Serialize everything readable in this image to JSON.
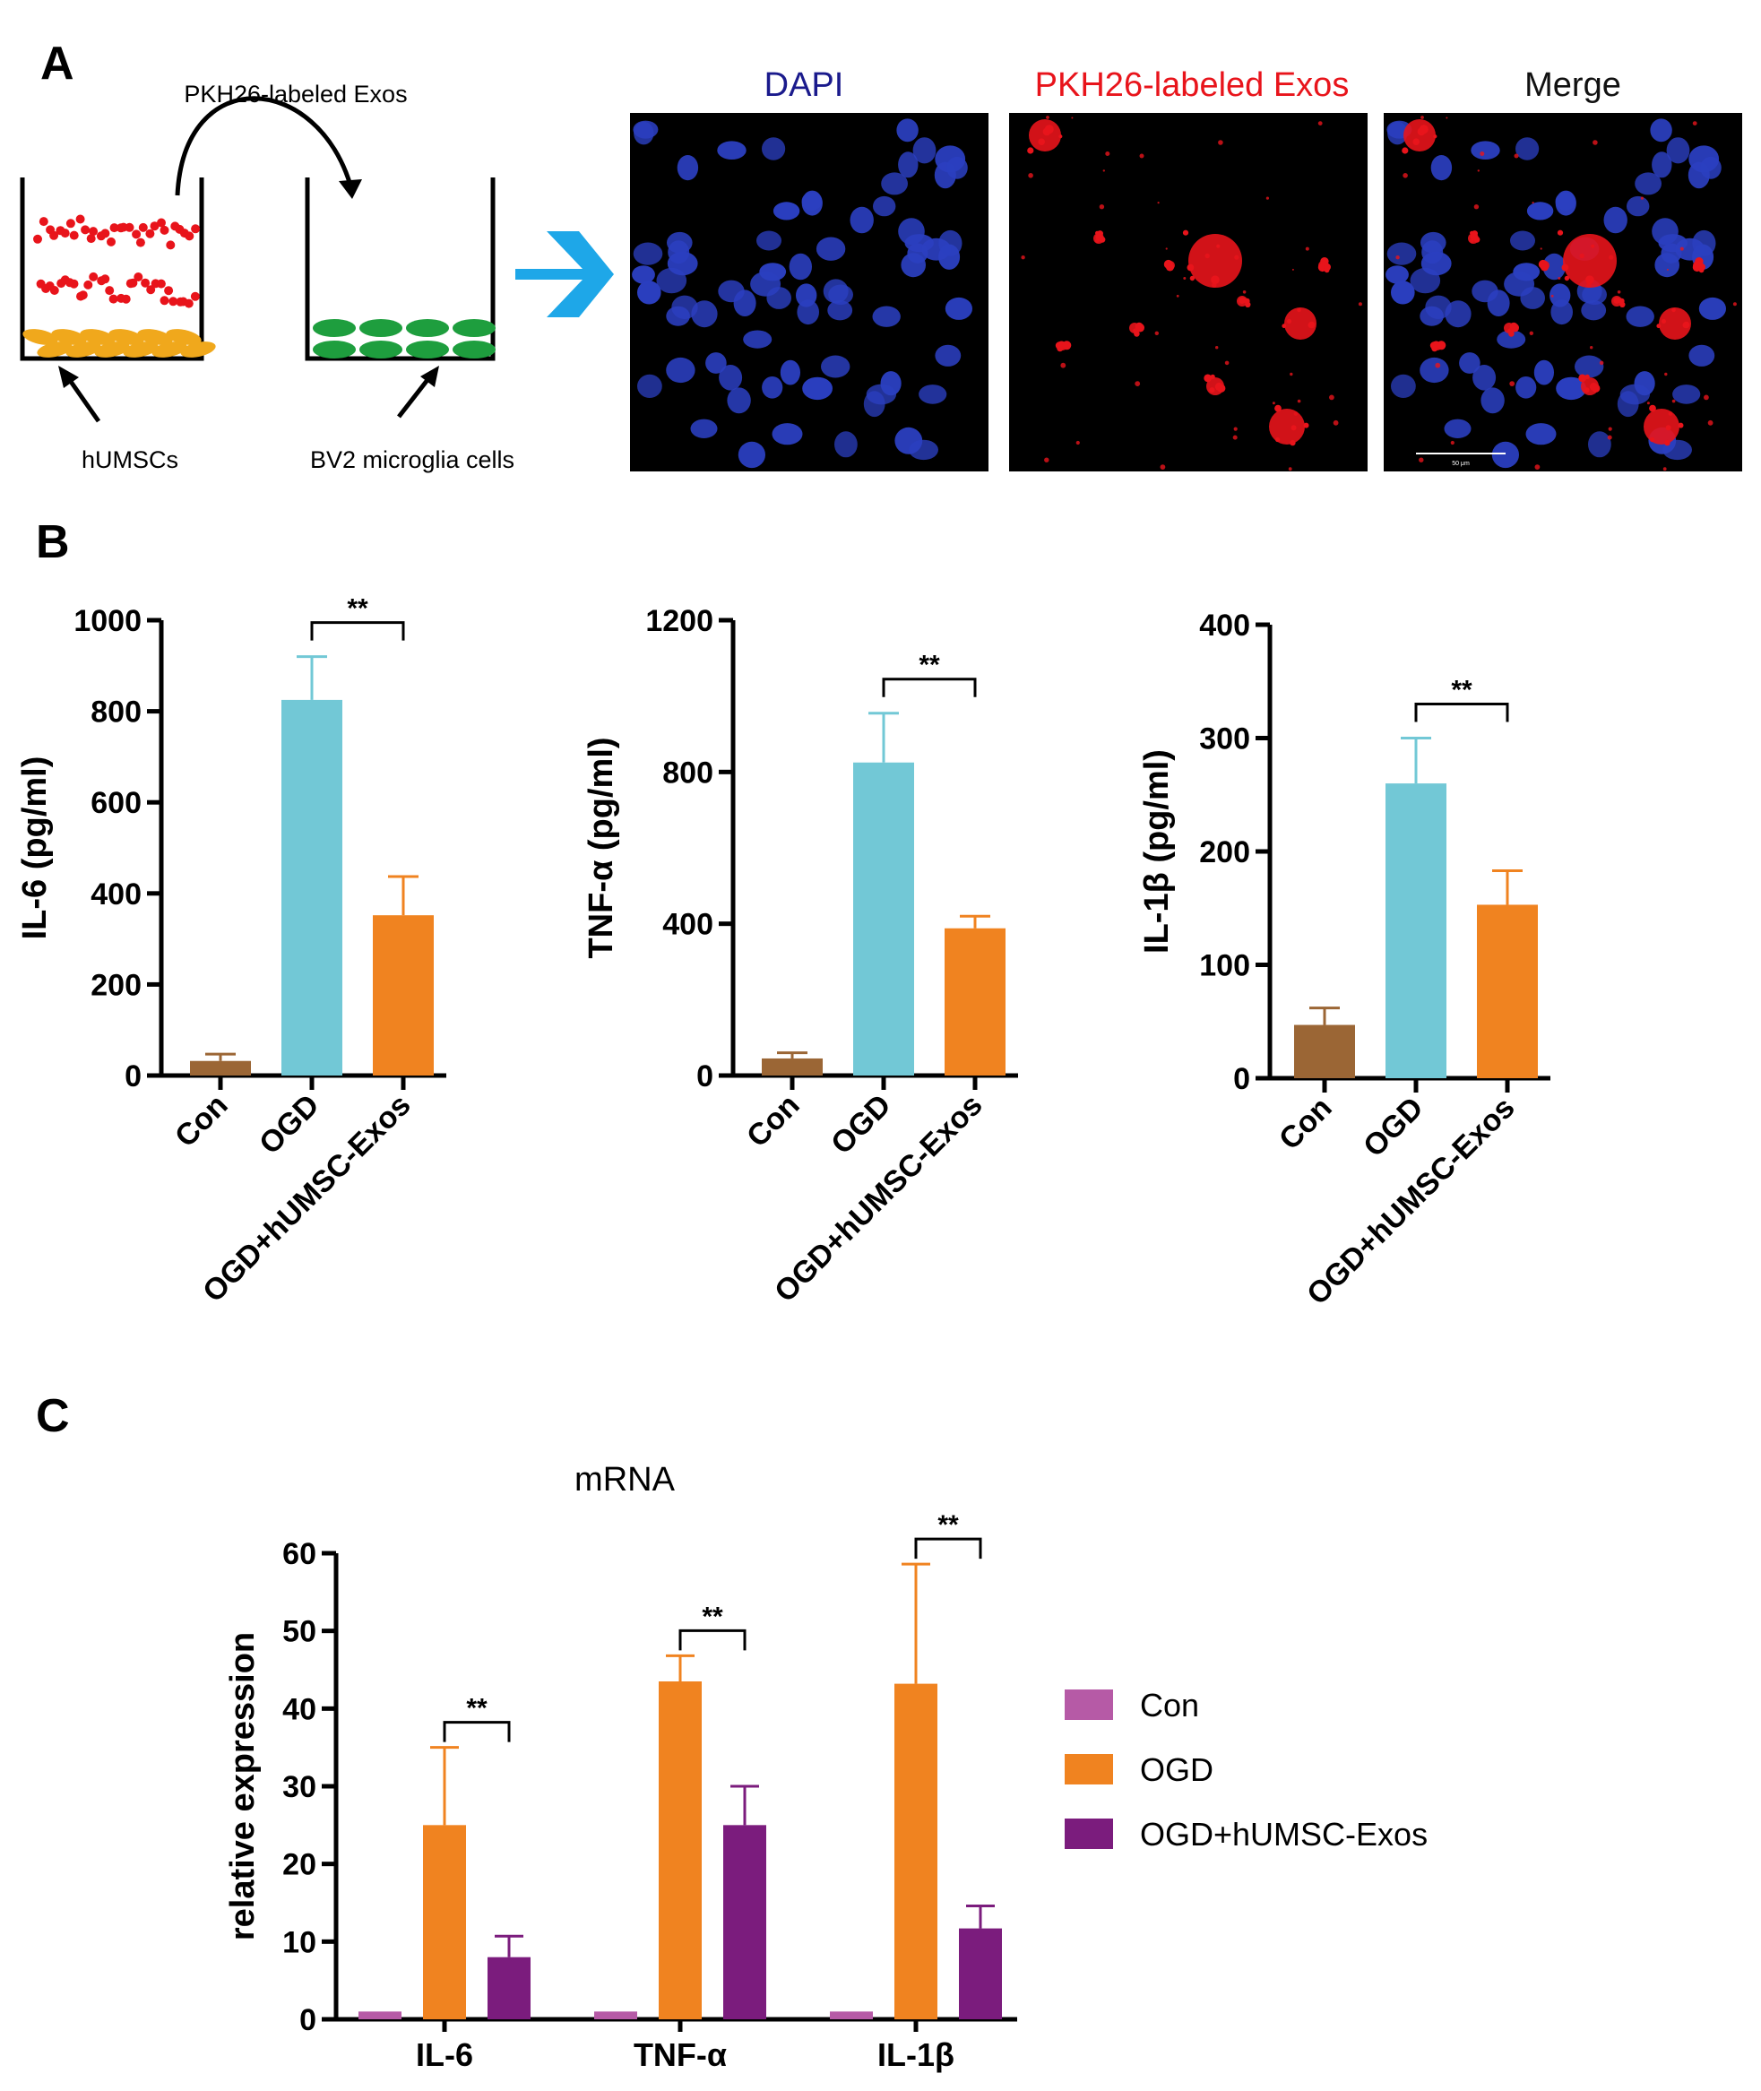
{
  "panel_a": {
    "letter": "A",
    "arrow_label": "PKH26-labeled Exos",
    "label_left": "hUMSCs",
    "label_right": "BV2 microglia cells",
    "micro_titles": [
      {
        "text": "DAPI",
        "color": "#1a1a8c"
      },
      {
        "text": "PKH26-labeled Exos",
        "color": "#e8141b"
      },
      {
        "text": "Merge",
        "color": "#111111"
      }
    ],
    "scale_text": "50 μm",
    "colors": {
      "dot": "#e8141b",
      "huMSC": "#f0a81c",
      "bv2": "#1e9e3e",
      "arrow": "#1ea7e8",
      "nucleus": "#2b3fc0"
    }
  },
  "panel_b": {
    "letter": "B"
  },
  "panel_c": {
    "letter": "C"
  },
  "chart_data": [
    {
      "type": "bar",
      "panel": "B",
      "categories": [
        "Con",
        "OGD",
        "OGD+hUMSC-Exos"
      ],
      "values": [
        32,
        825,
        352
      ],
      "errors": [
        15,
        95,
        85
      ],
      "colors": [
        "#9b6635",
        "#72c8d6",
        "#f08320"
      ],
      "ylabel": "IL-6 (pg/ml)",
      "ylim": [
        0,
        1000
      ],
      "yticks": [
        0,
        200,
        400,
        600,
        800,
        1000
      ],
      "significance": [
        {
          "from": 1,
          "to": 2,
          "label": "**"
        }
      ]
    },
    {
      "type": "bar",
      "panel": "B",
      "categories": [
        "Con",
        "OGD",
        "OGD+hUMSC-Exos"
      ],
      "values": [
        45,
        825,
        388
      ],
      "errors": [
        15,
        130,
        32
      ],
      "colors": [
        "#9b6635",
        "#72c8d6",
        "#f08320"
      ],
      "ylabel": "TNF-α (pg/ml)",
      "ylim": [
        0,
        1200
      ],
      "yticks": [
        0,
        400,
        800,
        1200
      ],
      "significance": [
        {
          "from": 1,
          "to": 2,
          "label": "**"
        }
      ]
    },
    {
      "type": "bar",
      "panel": "B",
      "categories": [
        "Con",
        "OGD",
        "OGD+hUMSC-Exos"
      ],
      "values": [
        47,
        260,
        153
      ],
      "errors": [
        15,
        40,
        30
      ],
      "colors": [
        "#9b6635",
        "#72c8d6",
        "#f08320"
      ],
      "ylabel": "IL-1β (pg/ml)",
      "ylim": [
        0,
        400
      ],
      "yticks": [
        0,
        100,
        200,
        300,
        400
      ],
      "significance": [
        {
          "from": 1,
          "to": 2,
          "label": "**"
        }
      ]
    },
    {
      "type": "bar",
      "panel": "C",
      "title": "mRNA",
      "ylabel": "relative expression",
      "ylim": [
        0,
        60
      ],
      "yticks": [
        0,
        10,
        20,
        30,
        40,
        50,
        60
      ],
      "categories": [
        "IL-6",
        "TNF-α",
        "IL-1β"
      ],
      "series": [
        {
          "name": "Con",
          "color": "#b65aa6",
          "values": [
            1,
            1,
            1
          ],
          "errors": [
            0,
            0,
            0
          ]
        },
        {
          "name": "OGD",
          "color": "#f08320",
          "values": [
            25,
            43.5,
            43.2
          ],
          "errors": [
            10,
            3.3,
            15.4
          ]
        },
        {
          "name": "OGD+hUMSC-Exos",
          "color": "#7b1c7d",
          "values": [
            8,
            25,
            11.7
          ],
          "errors": [
            2.7,
            5,
            2.9
          ]
        }
      ],
      "significance": [
        {
          "category": 0,
          "label": "**"
        },
        {
          "category": 1,
          "label": "**"
        },
        {
          "category": 2,
          "label": "**"
        }
      ],
      "legend_position": "right"
    }
  ]
}
